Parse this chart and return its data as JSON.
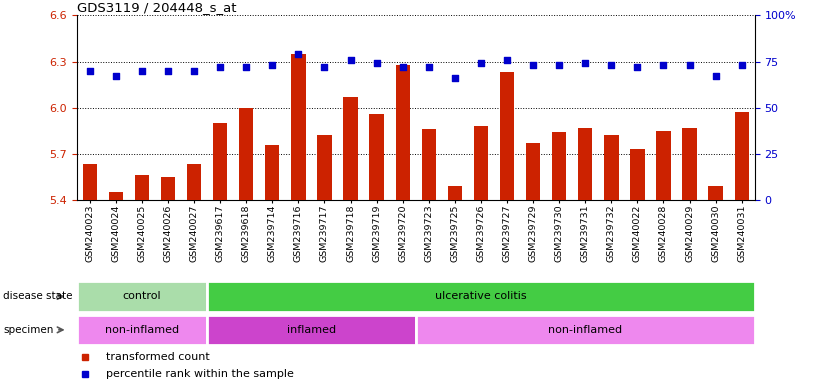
{
  "title": "GDS3119 / 204448_s_at",
  "samples": [
    "GSM240023",
    "GSM240024",
    "GSM240025",
    "GSM240026",
    "GSM240027",
    "GSM239617",
    "GSM239618",
    "GSM239714",
    "GSM239716",
    "GSM239717",
    "GSM239718",
    "GSM239719",
    "GSM239720",
    "GSM239723",
    "GSM239725",
    "GSM239726",
    "GSM239727",
    "GSM239729",
    "GSM239730",
    "GSM239731",
    "GSM239732",
    "GSM240022",
    "GSM240028",
    "GSM240029",
    "GSM240030",
    "GSM240031"
  ],
  "bar_values": [
    5.635,
    5.455,
    5.565,
    5.55,
    5.635,
    5.9,
    6.0,
    5.76,
    6.35,
    5.82,
    6.07,
    5.96,
    6.28,
    5.86,
    5.49,
    5.88,
    6.23,
    5.77,
    5.84,
    5.87,
    5.82,
    5.73,
    5.85,
    5.87,
    5.49,
    5.97
  ],
  "percentile_values": [
    70,
    67,
    70,
    70,
    70,
    72,
    72,
    73,
    79,
    72,
    76,
    74,
    72,
    72,
    66,
    74,
    76,
    73,
    73,
    74,
    73,
    72,
    73,
    73,
    67,
    73
  ],
  "ylim_left": [
    5.4,
    6.6
  ],
  "yticks_left": [
    5.4,
    5.7,
    6.0,
    6.3,
    6.6
  ],
  "ylim_right": [
    0,
    100
  ],
  "yticks_right": [
    0,
    25,
    50,
    75,
    100
  ],
  "bar_color": "#cc2200",
  "dot_color": "#0000cc",
  "plot_bg": "#ffffff",
  "fig_bg": "#ffffff",
  "disease_state_groups": [
    {
      "label": "control",
      "start": 0,
      "end": 5,
      "color": "#aaddaa"
    },
    {
      "label": "ulcerative colitis",
      "start": 5,
      "end": 26,
      "color": "#44cc44"
    }
  ],
  "specimen_groups": [
    {
      "label": "non-inflamed",
      "start": 0,
      "end": 5,
      "color": "#ee88ee"
    },
    {
      "label": "inflamed",
      "start": 5,
      "end": 13,
      "color": "#cc44cc"
    },
    {
      "label": "non-inflamed",
      "start": 13,
      "end": 26,
      "color": "#ee88ee"
    }
  ],
  "legend_items": [
    {
      "color": "#cc2200",
      "label": "transformed count"
    },
    {
      "color": "#0000cc",
      "label": "percentile rank within the sample"
    }
  ],
  "left_label_ds": "disease state",
  "left_label_sp": "specimen"
}
